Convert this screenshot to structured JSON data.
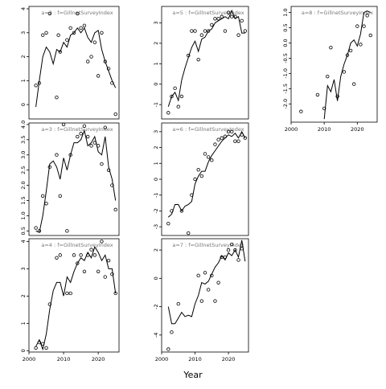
{
  "figure": {
    "xlabel": "Year"
  },
  "chart_data": [
    {
      "type": "scatter",
      "title": "a=2 : f=GillnetSurveyIndex",
      "xlim": [
        2000,
        2026
      ],
      "ylim": [
        -0.6,
        4.1
      ],
      "xticks": [
        2000,
        2010,
        2020
      ],
      "yticks": [
        0,
        1,
        2,
        3,
        4
      ],
      "show_xticks": false,
      "show_yticks": true,
      "observed": {
        "x": [
          2002,
          2003,
          2004,
          2005,
          2006,
          2008,
          2008.5,
          2009,
          2011,
          2012,
          2013,
          2014,
          2015,
          2016,
          2017,
          2018,
          2019,
          2020,
          2021,
          2022,
          2023,
          2024,
          2025
        ],
        "y": [
          0.8,
          0.9,
          2.9,
          3.0,
          3.8,
          0.3,
          2.9,
          2.2,
          2.7,
          3.2,
          3.0,
          3.8,
          3.2,
          3.3,
          1.8,
          2.0,
          2.6,
          1.2,
          3.0,
          1.8,
          1.5,
          0.9,
          -0.4
        ]
      },
      "fitted": {
        "x": [
          2002,
          2003,
          2004,
          2005,
          2006,
          2007,
          2008,
          2009,
          2010,
          2011,
          2012,
          2013,
          2014,
          2015,
          2016,
          2017,
          2018,
          2019,
          2020,
          2021,
          2022,
          2023,
          2024,
          2025
        ],
        "y": [
          -0.1,
          1.0,
          2.0,
          2.4,
          2.2,
          1.7,
          2.3,
          2.2,
          2.6,
          2.4,
          2.9,
          3.0,
          3.2,
          3.0,
          3.2,
          2.8,
          2.6,
          3.0,
          3.1,
          2.3,
          1.8,
          1.4,
          1.0,
          0.7
        ]
      }
    },
    {
      "type": "scatter",
      "title": "a=5 : f=GillnetSurveyIndex",
      "xlim": [
        2000,
        2026
      ],
      "ylim": [
        -1.7,
        3.8
      ],
      "xticks": [
        2000,
        2010,
        2020
      ],
      "yticks": [
        -1,
        0,
        1,
        2,
        3
      ],
      "show_xticks": false,
      "show_yticks": true,
      "observed": {
        "x": [
          2002,
          2003,
          2004,
          2005,
          2006,
          2008,
          2009,
          2010,
          2011,
          2012,
          2013,
          2014,
          2015,
          2016,
          2017,
          2018,
          2019,
          2020,
          2021,
          2022,
          2023,
          2024,
          2025
        ],
        "y": [
          -1.4,
          -0.6,
          -0.2,
          -1.1,
          -0.6,
          1.4,
          2.6,
          2.6,
          1.2,
          2.4,
          2.6,
          2.6,
          2.9,
          3.2,
          3.2,
          3.3,
          2.6,
          3.5,
          3.3,
          3.3,
          2.4,
          3.1,
          2.6
        ]
      },
      "fitted": {
        "x": [
          2002,
          2003,
          2004,
          2005,
          2006,
          2007,
          2008,
          2009,
          2010,
          2011,
          2012,
          2013,
          2014,
          2015,
          2016,
          2017,
          2018,
          2019,
          2020,
          2021,
          2022,
          2023,
          2024,
          2025
        ],
        "y": [
          -1.1,
          -0.6,
          -0.4,
          -0.8,
          0.2,
          0.8,
          1.3,
          1.8,
          2.1,
          1.6,
          2.2,
          2.3,
          2.6,
          2.7,
          3.0,
          3.1,
          3.2,
          3.3,
          3.2,
          3.6,
          3.2,
          3.3,
          2.5,
          2.5
        ]
      }
    },
    {
      "type": "scatter",
      "title": "a=8 : f=GillnetSurveyIndex",
      "xlim": [
        2000,
        2026
      ],
      "ylim": [
        -2.6,
        1.2
      ],
      "xticks": [
        2000,
        2010,
        2020
      ],
      "yticks": [
        -2.0,
        -1.5,
        -1.0,
        -0.5,
        0.0,
        0.5,
        1.0
      ],
      "show_xticks": true,
      "show_yticks": true,
      "observed": {
        "x": [
          2003,
          2008,
          2010,
          2011,
          2012,
          2014,
          2016,
          2017,
          2018,
          2019,
          2020,
          2021,
          2022,
          2023,
          2024
        ],
        "y": [
          -2.25,
          -1.7,
          -2.15,
          -1.1,
          -0.15,
          -1.75,
          -0.95,
          -0.4,
          -0.25,
          -1.35,
          0.55,
          -0.05,
          0.55,
          0.9,
          0.25
        ]
      },
      "fitted": {
        "x": [
          2010,
          2011,
          2012,
          2013,
          2014,
          2015,
          2016,
          2017,
          2018,
          2019,
          2020,
          2021,
          2022,
          2023,
          2024
        ],
        "y": [
          -2.5,
          -1.4,
          -1.6,
          -1.2,
          -1.9,
          -1.1,
          -0.7,
          -0.4,
          0.0,
          0.1,
          -0.1,
          0.3,
          1.0,
          1.05,
          1.0
        ]
      }
    },
    {
      "type": "scatter",
      "title": "a=3 : f=GillnetSurveyIndex",
      "xlim": [
        2000,
        2026
      ],
      "ylim": [
        0.35,
        4.05
      ],
      "xticks": [
        2000,
        2010,
        2020
      ],
      "yticks": [
        0.5,
        1.0,
        1.5,
        2.0,
        2.5,
        3.0,
        3.5,
        4.0
      ],
      "show_xticks": false,
      "show_yticks": true,
      "observed": {
        "x": [
          2002,
          2003,
          2004,
          2005,
          2006,
          2008,
          2009,
          2010,
          2011,
          2012,
          2014,
          2015,
          2016,
          2017,
          2018,
          2019,
          2020,
          2021,
          2022,
          2023,
          2024,
          2025
        ],
        "y": [
          0.6,
          0.5,
          1.65,
          1.4,
          2.6,
          3.0,
          1.65,
          4.0,
          0.5,
          3.0,
          3.6,
          3.7,
          3.95,
          3.6,
          3.3,
          3.4,
          3.3,
          2.7,
          3.9,
          2.5,
          2.0,
          1.2
        ]
      },
      "fitted": {
        "x": [
          2002,
          2003,
          2004,
          2005,
          2006,
          2007,
          2008,
          2009,
          2010,
          2011,
          2012,
          2013,
          2014,
          2015,
          2016,
          2017,
          2018,
          2019,
          2020,
          2021,
          2022,
          2023,
          2024,
          2025
        ],
        "y": [
          0.5,
          0.45,
          1.0,
          1.8,
          2.7,
          2.8,
          2.6,
          2.2,
          2.9,
          2.5,
          3.0,
          3.4,
          3.4,
          3.5,
          3.8,
          3.3,
          3.4,
          3.6,
          3.1,
          3.0,
          3.6,
          2.6,
          2.2,
          1.5
        ]
      }
    },
    {
      "type": "scatter",
      "title": "a=6 : f=GillnetSurveyIndex",
      "xlim": [
        2000,
        2026
      ],
      "ylim": [
        -3.55,
        3.55
      ],
      "xticks": [
        2000,
        2010,
        2020
      ],
      "yticks": [
        -3,
        -2,
        -1,
        0,
        1,
        2,
        3
      ],
      "show_xticks": false,
      "show_yticks": true,
      "observed": {
        "x": [
          2002,
          2003,
          2006,
          2008,
          2009,
          2010,
          2011,
          2012,
          2013,
          2014,
          2015,
          2016,
          2017,
          2018,
          2019,
          2020,
          2021,
          2022,
          2023,
          2024,
          2025
        ],
        "y": [
          -2.8,
          -2.0,
          -2.0,
          -3.4,
          -1.0,
          0.0,
          0.6,
          0.2,
          1.6,
          1.4,
          1.2,
          2.2,
          2.5,
          2.6,
          2.7,
          3.0,
          3.0,
          2.4,
          2.4,
          2.8,
          2.6
        ]
      },
      "fitted": {
        "x": [
          2002,
          2003,
          2004,
          2005,
          2006,
          2007,
          2008,
          2009,
          2010,
          2011,
          2012,
          2013,
          2014,
          2015,
          2016,
          2017,
          2018,
          2019,
          2020,
          2021,
          2022,
          2023,
          2024,
          2025
        ],
        "y": [
          -2.4,
          -2.2,
          -1.6,
          -1.6,
          -2.0,
          -1.7,
          -1.6,
          -1.4,
          -0.3,
          0.2,
          0.5,
          0.5,
          1.1,
          1.5,
          1.8,
          2.1,
          2.4,
          2.6,
          2.8,
          2.7,
          2.9,
          2.6,
          3.0,
          2.6
        ]
      }
    },
    {
      "type": "scatter",
      "title": "a=4 : f=GillnetSurveyIndex",
      "xlim": [
        2000,
        2026
      ],
      "ylim": [
        -0.05,
        4.1
      ],
      "xticks": [
        2000,
        2010,
        2020
      ],
      "yticks": [
        0,
        1,
        2,
        3,
        4
      ],
      "show_xticks": true,
      "show_yticks": true,
      "observed": {
        "x": [
          2002,
          2003,
          2004,
          2005,
          2006,
          2008,
          2009,
          2011,
          2012,
          2013,
          2014,
          2015,
          2016,
          2017,
          2018,
          2019,
          2020,
          2021,
          2022,
          2023,
          2024,
          2025
        ],
        "y": [
          0.1,
          0.3,
          0.25,
          0.1,
          1.7,
          3.4,
          3.5,
          2.1,
          2.1,
          3.5,
          3.2,
          3.5,
          2.9,
          3.5,
          3.7,
          3.5,
          2.9,
          4.0,
          2.7,
          3.3,
          2.8,
          2.1
        ]
      },
      "fitted": {
        "x": [
          2002,
          2003,
          2004,
          2005,
          2006,
          2007,
          2008,
          2009,
          2010,
          2011,
          2012,
          2013,
          2014,
          2015,
          2016,
          2017,
          2018,
          2019,
          2020,
          2021,
          2022,
          2023,
          2024,
          2025
        ],
        "y": [
          0.15,
          0.4,
          0.05,
          0.6,
          1.5,
          2.2,
          2.5,
          2.5,
          2.0,
          2.7,
          2.5,
          2.9,
          3.2,
          3.4,
          3.3,
          3.6,
          3.4,
          3.8,
          3.6,
          3.3,
          3.5,
          3.0,
          3.0,
          2.1
        ]
      }
    },
    {
      "type": "scatter",
      "title": "a=7 : f=GillnetSurveyIndex",
      "xlim": [
        2000,
        2026
      ],
      "ylim": [
        -5.2,
        2.8
      ],
      "xticks": [
        2000,
        2010,
        2020
      ],
      "yticks": [
        -4,
        -2,
        0,
        2
      ],
      "show_xticks": true,
      "show_yticks": true,
      "observed": {
        "x": [
          2002,
          2003,
          2005,
          2011,
          2012,
          2013,
          2014,
          2015,
          2016,
          2017,
          2018,
          2019,
          2020,
          2021,
          2022,
          2023,
          2024
        ],
        "y": [
          -5.0,
          -3.8,
          -1.8,
          0.2,
          -1.6,
          0.4,
          -0.8,
          0.2,
          -1.6,
          -0.3,
          1.5,
          1.5,
          2.0,
          2.4,
          2.0,
          1.3,
          2.1
        ]
      },
      "fitted": {
        "x": [
          2002,
          2003,
          2004,
          2005,
          2006,
          2007,
          2008,
          2009,
          2010,
          2011,
          2012,
          2013,
          2014,
          2015,
          2016,
          2017,
          2018,
          2019,
          2020,
          2021,
          2022,
          2023,
          2024,
          2025
        ],
        "y": [
          -2.0,
          -3.2,
          -3.2,
          -2.8,
          -2.4,
          -2.7,
          -2.6,
          -2.7,
          -1.8,
          -1.2,
          -0.3,
          -0.4,
          -0.2,
          0.3,
          0.8,
          1.1,
          1.6,
          1.3,
          1.8,
          1.6,
          2.0,
          1.5,
          2.7,
          1.2
        ]
      }
    }
  ]
}
